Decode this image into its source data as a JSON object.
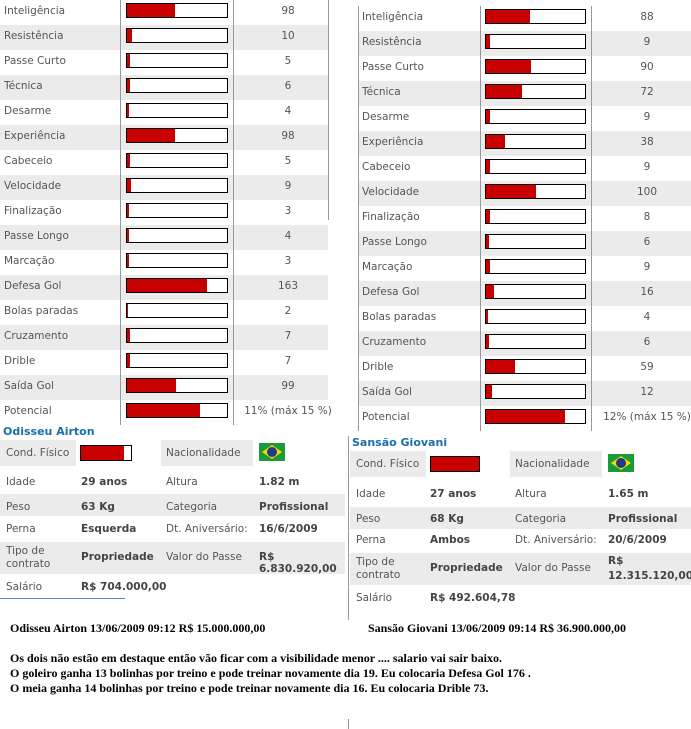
{
  "left_player": {
    "stats": [
      {
        "label": "Inteligência",
        "value": "98",
        "fill": 0.48
      },
      {
        "label": "Resistência",
        "value": "10",
        "fill": 0.05
      },
      {
        "label": "Passe Curto",
        "value": "5",
        "fill": 0.03
      },
      {
        "label": "Técnica",
        "value": "6",
        "fill": 0.03
      },
      {
        "label": "Desarme",
        "value": "4",
        "fill": 0.02
      },
      {
        "label": "Experiência",
        "value": "98",
        "fill": 0.48
      },
      {
        "label": "Cabeceio",
        "value": "5",
        "fill": 0.03
      },
      {
        "label": "Velocidade",
        "value": "9",
        "fill": 0.04
      },
      {
        "label": "Finalização",
        "value": "3",
        "fill": 0.02
      },
      {
        "label": "Passe Longo",
        "value": "4",
        "fill": 0.02
      },
      {
        "label": "Marcação",
        "value": "3",
        "fill": 0.02
      },
      {
        "label": "Defesa Gol",
        "value": "163",
        "fill": 0.8
      },
      {
        "label": "Bolas paradas",
        "value": "2",
        "fill": 0.01
      },
      {
        "label": "Cruzamento",
        "value": "7",
        "fill": 0.03
      },
      {
        "label": "Drible",
        "value": "7",
        "fill": 0.03
      },
      {
        "label": "Saída Gol",
        "value": "99",
        "fill": 0.49
      },
      {
        "label": "Potencial",
        "value": "11% (máx 15 %)",
        "fill": 0.73
      }
    ],
    "name": "Odisseu Airton",
    "cond_fisico_label": "Cond. Físico",
    "cond_fisico_fill": 0.86,
    "nacionalidade_label": "Nacionalidade",
    "idade_label": "Idade",
    "idade": "29 anos",
    "altura_label": "Altura",
    "altura": "1.82 m",
    "peso_label": "Peso",
    "peso": "63 Kg",
    "categoria_label": "Categoria",
    "categoria": "Profissional",
    "perna_label": "Perna",
    "perna": "Esquerda",
    "aniversario_label": "Dt. Aniversário:",
    "aniversario": "16/6/2009",
    "tipo_label": "Tipo de contrato",
    "tipo": "Propriedade",
    "valor_label": "Valor do Passe",
    "valor": "R$ 6.830.920,00",
    "salario_label": "Salário",
    "salario": "R$ 704.000,00"
  },
  "right_player": {
    "stats": [
      {
        "label": "Inteligência",
        "value": "88",
        "fill": 0.44
      },
      {
        "label": "Resistência",
        "value": "9",
        "fill": 0.04
      },
      {
        "label": "Passe Curto",
        "value": "90",
        "fill": 0.45
      },
      {
        "label": "Técnica",
        "value": "72",
        "fill": 0.36
      },
      {
        "label": "Desarme",
        "value": "9",
        "fill": 0.04
      },
      {
        "label": "Experiência",
        "value": "38",
        "fill": 0.19
      },
      {
        "label": "Cabeceio",
        "value": "9",
        "fill": 0.04
      },
      {
        "label": "Velocidade",
        "value": "100",
        "fill": 0.5
      },
      {
        "label": "Finalização",
        "value": "8",
        "fill": 0.04
      },
      {
        "label": "Passe Longo",
        "value": "6",
        "fill": 0.03
      },
      {
        "label": "Marcação",
        "value": "9",
        "fill": 0.04
      },
      {
        "label": "Defesa Gol",
        "value": "16",
        "fill": 0.08
      },
      {
        "label": "Bolas paradas",
        "value": "4",
        "fill": 0.02
      },
      {
        "label": "Cruzamento",
        "value": "6",
        "fill": 0.03
      },
      {
        "label": "Drible",
        "value": "59",
        "fill": 0.29
      },
      {
        "label": "Saída Gol",
        "value": "12",
        "fill": 0.06
      },
      {
        "label": "Potencial",
        "value": "12% (máx 15 %)",
        "fill": 0.8
      }
    ],
    "name": "Sansão Giovani",
    "cond_fisico_label": "Cond. Físico",
    "cond_fisico_fill": 1.0,
    "nacionalidade_label": "Nacionalidade",
    "idade_label": "Idade",
    "idade": "27 anos",
    "altura_label": "Altura",
    "altura": "1.65 m",
    "peso_label": "Peso",
    "peso": "68 Kg",
    "categoria_label": "Categoria",
    "categoria": "Profissional",
    "perna_label": "Perna",
    "perna": "Ambos",
    "aniversario_label": "Dt. Aniversário:",
    "aniversario": "20/6/2009",
    "tipo_label": "Tipo de contrato",
    "tipo": "Propriedade",
    "valor_label": "Valor do Passe",
    "valor_line1": "R$",
    "valor_line2": "12.315.120,00",
    "salario_label": "Salário",
    "salario": "R$ 492.604,78"
  },
  "notes": {
    "left_header": "Odisseu Airton 13/06/2009 09:12 R$ 15.000.000,00",
    "right_header": "Sansão Giovani 13/06/2009 09:14 R$ 36.900.000,00",
    "line1": "Os dois não estão em destaque então vão ficar com a visibilidade menor .... salario vai sair baixo.",
    "line2": "O goleiro ganha 13 bolinhas por treino e pode treinar novamente dia 19. Eu colocaria Defesa Gol 176 .",
    "line3": "O meia ganha 14 bolinhas por treino e pode treinar novamente dia 16. Eu colocaria Drible 73."
  },
  "colors": {
    "bar_fill": "#c80000",
    "row_alt": "#ebebeb",
    "name_color": "#1a6fa8"
  }
}
